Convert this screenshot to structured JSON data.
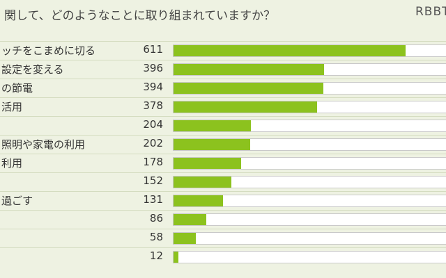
{
  "title": "関して、どのようなことに取り組まれていますか？",
  "brand": "RBBT",
  "colors": {
    "bar": "#8cc21e",
    "background": "#eef2e2",
    "track": "#ffffff"
  },
  "chart_data": {
    "type": "bar",
    "orientation": "horizontal",
    "title": "関して、どのようなことに取り組まれていますか？",
    "xlim": [
      0,
      720
    ],
    "categories": [
      "ッチをこまめに切る",
      "設定を変える",
      "の節電",
      "活用",
      "",
      "照明や家電の利用",
      "利用",
      "",
      "過ごす",
      "",
      "",
      ""
    ],
    "values": [
      611,
      396,
      394,
      378,
      204,
      202,
      178,
      152,
      131,
      86,
      58,
      12
    ]
  }
}
